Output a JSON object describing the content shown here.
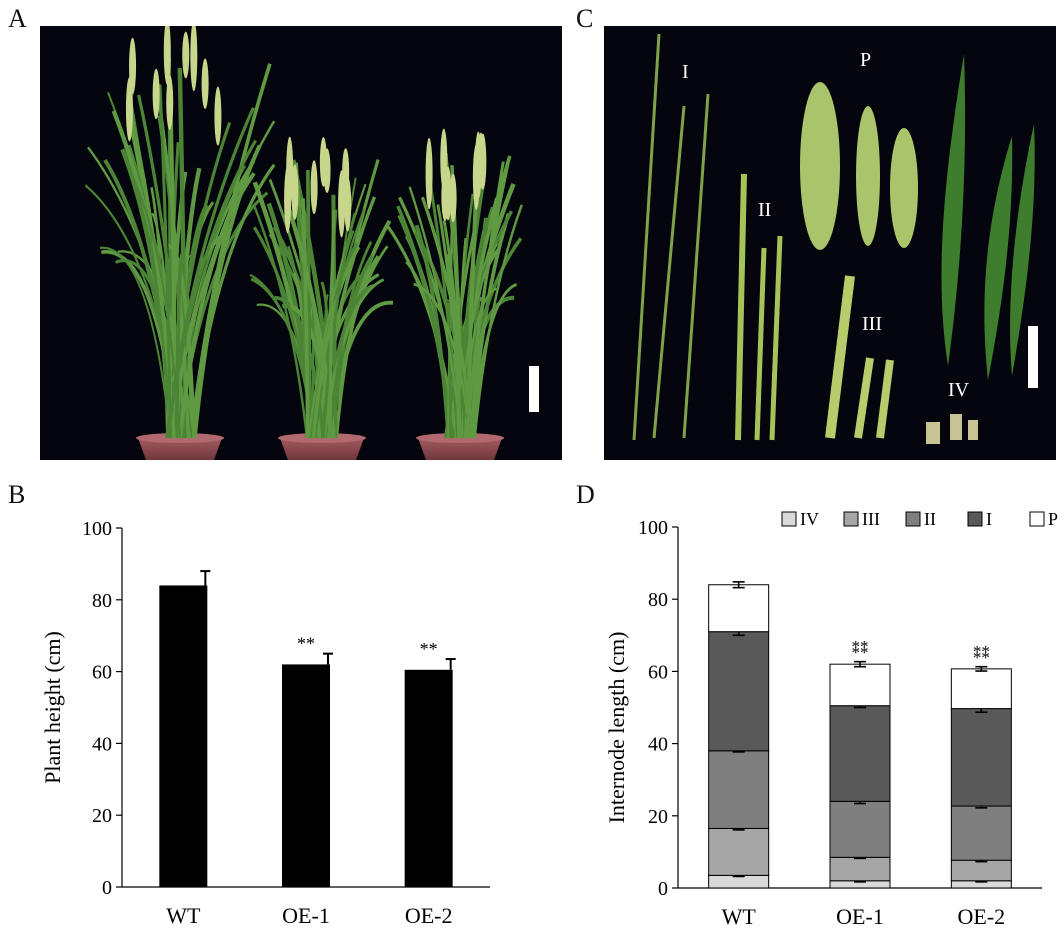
{
  "panels": {
    "a": "A",
    "b": "B",
    "c": "C",
    "d": "D"
  },
  "photo_c_labels": {
    "i": "I",
    "ii": "II",
    "iii": "III",
    "iv": "IV",
    "p": "P"
  },
  "colors": {
    "photo_bg": "#05060d",
    "plant_green": "#5f9a43",
    "panicle": "#c7d68b",
    "pot": "#8a4a4e",
    "bar_b": "#000000",
    "seg_IV": "#d9d9d9",
    "seg_III": "#a6a6a6",
    "seg_II": "#7f7f7f",
    "seg_I": "#595959",
    "seg_P": "#ffffff"
  },
  "chart_data": [
    {
      "type": "bar",
      "panel": "B",
      "categories": [
        "WT",
        "OE-1",
        "OE-2"
      ],
      "values": [
        84,
        62,
        60.5
      ],
      "errors": [
        4,
        3,
        3
      ],
      "significance": [
        "",
        "**",
        "**"
      ],
      "ylabel": "Plant height (cm)",
      "ylim": [
        0,
        100
      ],
      "yticks": [
        "0",
        "20",
        "40",
        "60",
        "80",
        "100"
      ],
      "grid": false
    },
    {
      "type": "bar",
      "stacked": true,
      "panel": "D",
      "categories": [
        "WT",
        "OE-1",
        "OE-2"
      ],
      "ylabel": "Internode length (cm)",
      "ylim": [
        0,
        100
      ],
      "yticks": [
        "0",
        "20",
        "40",
        "60",
        "80",
        "100"
      ],
      "legend": "top",
      "series": [
        {
          "name": "IV",
          "values": [
            3.5,
            2,
            2
          ],
          "errors": [
            0.3,
            0.3,
            0.3
          ],
          "significance": [
            "",
            "**",
            "**"
          ]
        },
        {
          "name": "III",
          "values": [
            13,
            6.5,
            5.7
          ],
          "errors": [
            0.4,
            0.3,
            0.4
          ],
          "significance": [
            "",
            "**",
            "**"
          ]
        },
        {
          "name": "II",
          "values": [
            21.5,
            15.5,
            15
          ],
          "errors": [
            0.3,
            0.6,
            0.5
          ],
          "significance": [
            "",
            "**",
            "**"
          ]
        },
        {
          "name": "I",
          "values": [
            33,
            26.5,
            27
          ],
          "errors": [
            1,
            0.5,
            1
          ],
          "significance": [
            "",
            "",
            ""
          ]
        },
        {
          "name": "P",
          "values": [
            13,
            11.5,
            11
          ],
          "errors": [
            0.8,
            0.7,
            0.6
          ],
          "significance": [
            "",
            "**",
            "**"
          ]
        }
      ],
      "total_significance": [
        "",
        "**",
        "**"
      ]
    }
  ]
}
